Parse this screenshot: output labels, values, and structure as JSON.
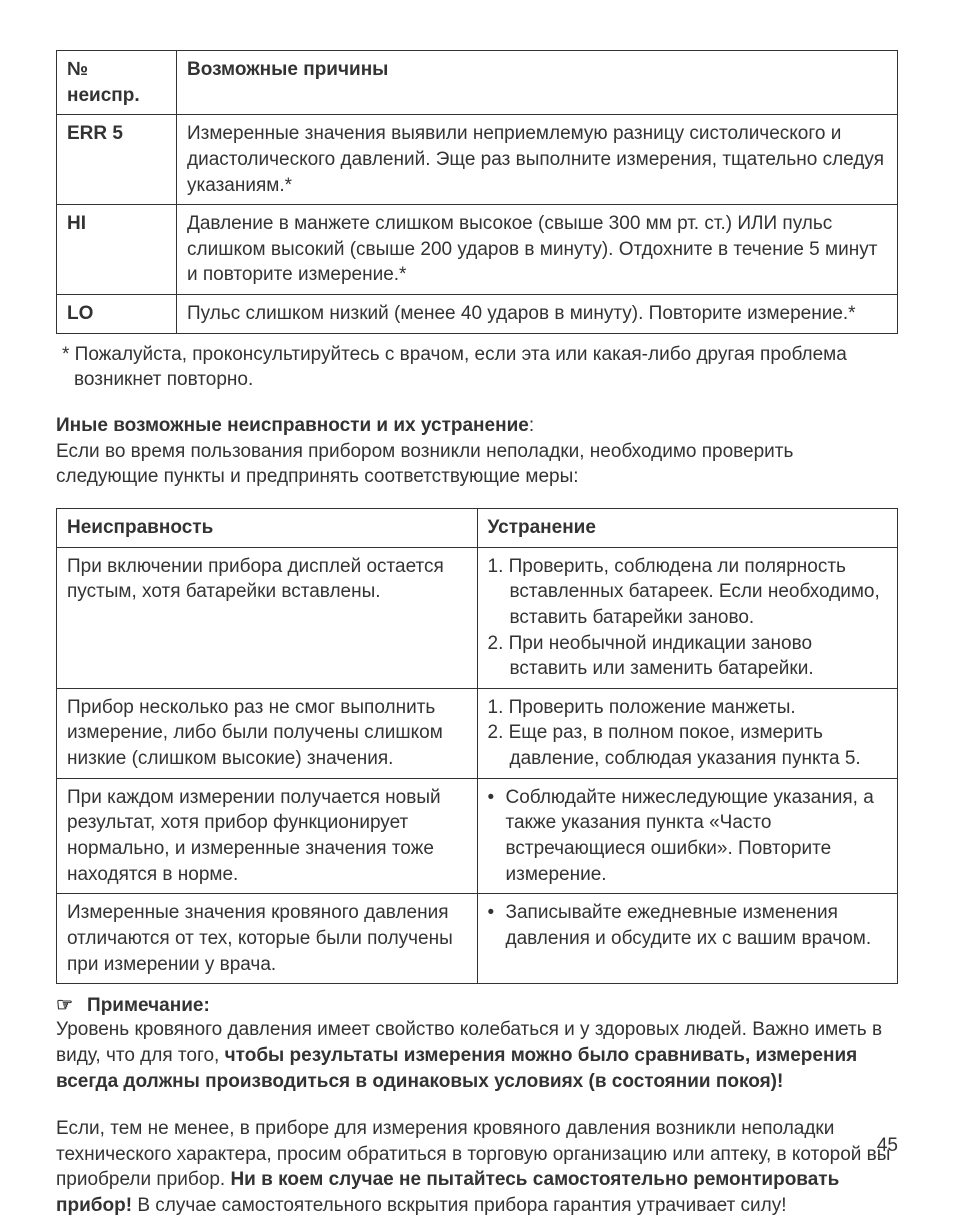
{
  "table1": {
    "headers": [
      "№ неиспр.",
      "Возможные причины"
    ],
    "rows": [
      {
        "code": "ERR 5",
        "cause": "Измеренные значения выявили неприемлемую разницу систолического и диастолического давлений. Эще раз выполните измерения, тщательно следуя указаниям.*"
      },
      {
        "code": "HI",
        "cause": "Давление в манжете слишком высокое (свыше 300 мм рт. ст.) ИЛИ пульс слишком высокий (свыше 200 ударов в минуту). Отдохните в течение 5 минут и повторите измерение.*"
      },
      {
        "code": "LO",
        "cause": "Пульс слишком низкий (менее 40 ударов в минуту). Повторите измерение.*"
      }
    ]
  },
  "footnote": "*  Пожалуйста, проконсультируйтесь с врачом, если эта или какая-либо другая проблема возникнет повторно.",
  "section2": {
    "title": "Иные возможные неисправности и их устранение",
    "colon": ":",
    "intro": "Если во время пользования прибором возникли неполадки, необходимо проверить следующие пункты и предпринять соответствующие меры:"
  },
  "table2": {
    "headers": [
      "Неисправность",
      "Устранение"
    ],
    "rows": [
      {
        "problem": "При включении прибора дисплей остается пустым, хотя батарейки вставлены.",
        "fix_items": [
          "1. Проверить, соблюдена ли полярность вставленных батареек. Если необходимо, вставить батарейки заново.",
          "2. При необычной индикации заново вставить или заменить батарейки."
        ],
        "fix_style": "num"
      },
      {
        "problem": "Прибор несколько раз не смог выполнить измерение, либо были получены слишком низкие (слишком высокие) значения.",
        "fix_items": [
          "1. Проверить положение манжеты.",
          "2. Еще раз, в полном покое, измерить давление, соблюдая указания пункта 5."
        ],
        "fix_style": "num"
      },
      {
        "problem": "При каждом измерении получается новый результат, хотя прибор функционирует нормально, и измеренные значения тоже находятся в норме.",
        "fix_items": [
          "Соблюдайте нижеследующие указания, а также указания пункта «Часто встречающиеся ошибки». Повторите измерение."
        ],
        "fix_style": "bullet"
      },
      {
        "problem": "Измеренные значения кровяного давления отличаются от тех, которые были получены при измерении у врача.",
        "fix_items": [
          "Записывайте ежедневные изменения давления и обсудите их с вашим врачом."
        ],
        "fix_style": "bullet"
      }
    ]
  },
  "note": {
    "icon": "☞",
    "title": "Примечание:",
    "para1_a": "Уровень кровяного давления имеет свойство колебаться и у здоровых людей. Важно иметь в виду, что для того, ",
    "para1_b": "чтобы результаты измерения можно было сравнивать, измерения всегда должны производиться в одинаковых условиях (в состоянии покоя)!",
    "para2_a": "Если, тем не менее, в приборе для измерения кровяного давления возникли неполадки технического характера, просим обратиться в торговую организацию или аптеку, в которой вы приобрели прибор. ",
    "para2_b": "Ни в коем случае не пытайтесь самостоятельно ремонтировать прибор!",
    "para2_c": " В случае самостоятельного вскрытия прибора гарантия утрачивает силу!"
  },
  "page_number": "45",
  "colors": {
    "text": "#333333",
    "border": "#333333",
    "background": "#ffffff"
  },
  "fonts": {
    "family": "Arial, Helvetica, sans-serif",
    "size_body": 19,
    "line_height": 1.35
  }
}
